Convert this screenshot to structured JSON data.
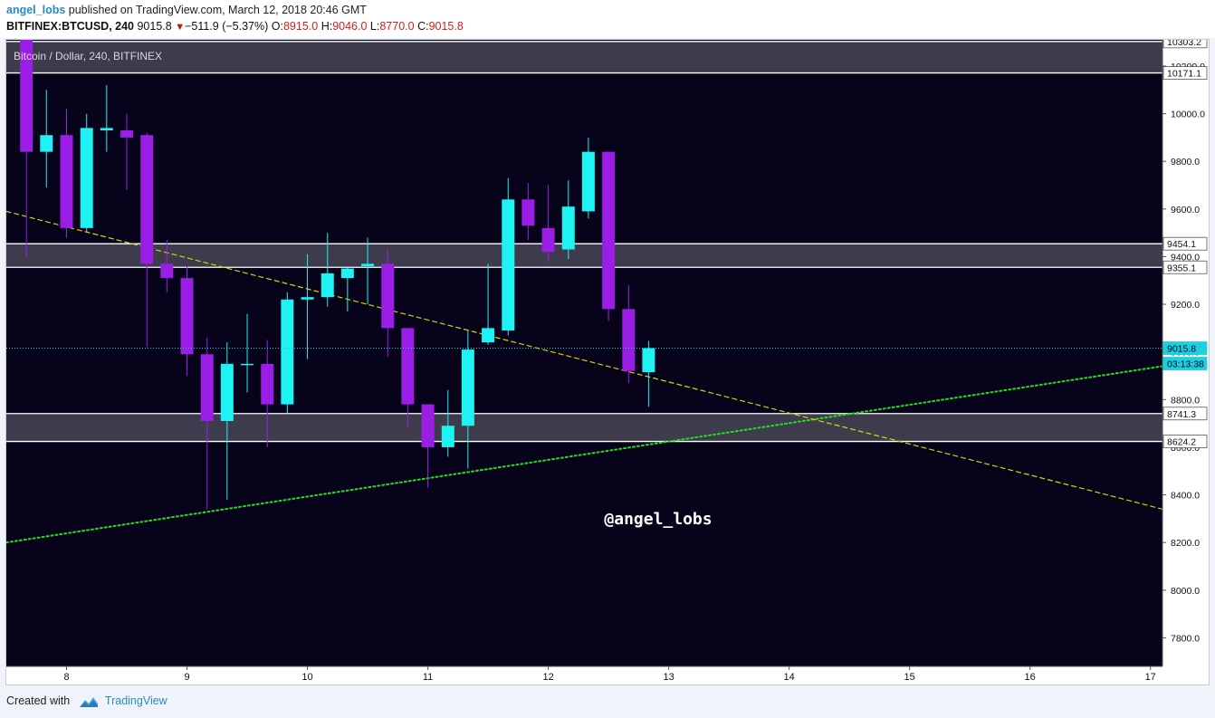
{
  "header": {
    "author": "angel_lobs",
    "published_text": "published on TradingView.com, March 12, 2018 20:46 GMT",
    "symbol": "BITFINEX:BTCUSD, 240",
    "last": "9015.8",
    "change": "−511.9 (−5.37%)",
    "o_label": "O:",
    "o_value": "8915.0",
    "h_label": "H:",
    "h_value": "9046.0",
    "l_label": "L:",
    "l_value": "8770.0",
    "c_label": "C:",
    "c_value": "9015.8"
  },
  "footer": {
    "created_with": "Created with",
    "brand": "TradingView"
  },
  "colors": {
    "chart_bg": "#06031a",
    "bull": "#1ef2f2",
    "bear": "#9b1ee6",
    "zone_fill": "#3e3b4c",
    "zone_line": "#ffffff",
    "trend_up": "#22dd22",
    "trend_down": "#d8d018",
    "last_price": "#1bd1e0",
    "axis_text": "#111111"
  },
  "chart_data": {
    "type": "candlestick",
    "title": "Bitcoin / Dollar, 240, BITFINEX",
    "watermark": "@angel_lobs",
    "ylim": [
      7680,
      10310
    ],
    "xlim": [
      7.5,
      17.1
    ],
    "y_ticks": [
      7800,
      8000,
      8200,
      8400,
      8600,
      8800,
      9000,
      9200,
      9400,
      9600,
      9800,
      10000,
      10200
    ],
    "x_ticks": [
      {
        "value": 8,
        "label": "8"
      },
      {
        "value": 9,
        "label": "9"
      },
      {
        "value": 10,
        "label": "10"
      },
      {
        "value": 11,
        "label": "11"
      },
      {
        "value": 12,
        "label": "12"
      },
      {
        "value": 13,
        "label": "13"
      },
      {
        "value": 14,
        "label": "14"
      },
      {
        "value": 15,
        "label": "15"
      },
      {
        "value": 16,
        "label": "16"
      },
      {
        "value": 17,
        "label": "17"
      }
    ],
    "zones": [
      {
        "top": 10303.2,
        "bottom": 10171.1,
        "top_label": "10303.2",
        "bottom_label": "10171.1"
      },
      {
        "top": 9454.1,
        "bottom": 9355.1,
        "top_label": "9454.1",
        "bottom_label": "9355.1"
      },
      {
        "top": 8741.3,
        "bottom": 8624.2,
        "top_label": "8741.3",
        "bottom_label": "8624.2"
      }
    ],
    "last_price": {
      "value": 9015.8,
      "label": "9015.8",
      "countdown": "03:13:38"
    },
    "trendlines": [
      {
        "name": "support",
        "style": "dotted",
        "from": [
          7.5,
          8200
        ],
        "to": [
          17.1,
          8940
        ]
      },
      {
        "name": "resistance",
        "style": "dashed",
        "from": [
          7.5,
          9590
        ],
        "to": [
          17.1,
          8340
        ]
      }
    ],
    "candles": [
      {
        "t": 7.667,
        "o": 10500,
        "h": 10600,
        "l": 9400,
        "c": 9840
      },
      {
        "t": 7.833,
        "o": 9840,
        "h": 10100,
        "l": 9690,
        "c": 9910
      },
      {
        "t": 8.0,
        "o": 9910,
        "h": 10020,
        "l": 9480,
        "c": 9520
      },
      {
        "t": 8.167,
        "o": 9520,
        "h": 10000,
        "l": 9500,
        "c": 9940
      },
      {
        "t": 8.333,
        "o": 9930,
        "h": 10120,
        "l": 9840,
        "c": 9940
      },
      {
        "t": 8.5,
        "o": 9930,
        "h": 10000,
        "l": 9680,
        "c": 9900
      },
      {
        "t": 8.667,
        "o": 9910,
        "h": 9920,
        "l": 9020,
        "c": 9370
      },
      {
        "t": 8.833,
        "o": 9370,
        "h": 9470,
        "l": 9250,
        "c": 9310
      },
      {
        "t": 9.0,
        "o": 9310,
        "h": 9360,
        "l": 8900,
        "c": 8990
      },
      {
        "t": 9.167,
        "o": 8990,
        "h": 9060,
        "l": 8340,
        "c": 8710
      },
      {
        "t": 9.333,
        "o": 8710,
        "h": 9040,
        "l": 8380,
        "c": 8950
      },
      {
        "t": 9.5,
        "o": 8950,
        "h": 9160,
        "l": 8830,
        "c": 8950
      },
      {
        "t": 9.667,
        "o": 8950,
        "h": 9050,
        "l": 8600,
        "c": 8780
      },
      {
        "t": 9.833,
        "o": 8780,
        "h": 9250,
        "l": 8740,
        "c": 9220
      },
      {
        "t": 10.0,
        "o": 9220,
        "h": 9410,
        "l": 8970,
        "c": 9230
      },
      {
        "t": 10.167,
        "o": 9230,
        "h": 9500,
        "l": 9190,
        "c": 9330
      },
      {
        "t": 10.333,
        "o": 9310,
        "h": 9360,
        "l": 9170,
        "c": 9350
      },
      {
        "t": 10.5,
        "o": 9360,
        "h": 9480,
        "l": 9200,
        "c": 9370
      },
      {
        "t": 10.667,
        "o": 9370,
        "h": 9430,
        "l": 8980,
        "c": 9100
      },
      {
        "t": 10.833,
        "o": 9100,
        "h": 9100,
        "l": 8680,
        "c": 8780
      },
      {
        "t": 11.0,
        "o": 8780,
        "h": 8780,
        "l": 8430,
        "c": 8600
      },
      {
        "t": 11.167,
        "o": 8600,
        "h": 8840,
        "l": 8560,
        "c": 8690
      },
      {
        "t": 11.333,
        "o": 8690,
        "h": 9090,
        "l": 8510,
        "c": 9010
      },
      {
        "t": 11.5,
        "o": 9040,
        "h": 9370,
        "l": 9030,
        "c": 9100
      },
      {
        "t": 11.667,
        "o": 9090,
        "h": 9730,
        "l": 9070,
        "c": 9640
      },
      {
        "t": 11.833,
        "o": 9640,
        "h": 9710,
        "l": 9470,
        "c": 9530
      },
      {
        "t": 12.0,
        "o": 9520,
        "h": 9700,
        "l": 9380,
        "c": 9420
      },
      {
        "t": 12.167,
        "o": 9430,
        "h": 9720,
        "l": 9390,
        "c": 9610
      },
      {
        "t": 12.333,
        "o": 9590,
        "h": 9900,
        "l": 9560,
        "c": 9840
      },
      {
        "t": 12.5,
        "o": 9840,
        "h": 9840,
        "l": 9130,
        "c": 9180
      },
      {
        "t": 12.667,
        "o": 9180,
        "h": 9280,
        "l": 8870,
        "c": 8920
      },
      {
        "t": 12.833,
        "o": 8915,
        "h": 9046,
        "l": 8770,
        "c": 9016
      }
    ]
  }
}
